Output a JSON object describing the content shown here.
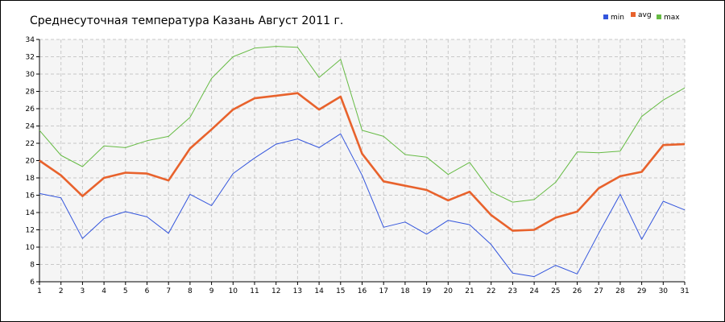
{
  "chart_data": {
    "type": "line",
    "title": "Среднесуточная температура Казань  Август 2011 г.",
    "xlabel": "",
    "ylabel": "",
    "xlim": [
      1,
      31
    ],
    "ylim": [
      6,
      34
    ],
    "grid": true,
    "legend_position": "top-right",
    "categories": [
      "1",
      "2",
      "3",
      "4",
      "5",
      "6",
      "7",
      "8",
      "9",
      "10",
      "11",
      "12",
      "13",
      "14",
      "15",
      "16",
      "17",
      "18",
      "19",
      "20",
      "21",
      "22",
      "23",
      "24",
      "25",
      "26",
      "27",
      "28",
      "29",
      "30",
      "31"
    ],
    "yticks": [
      "6",
      "8",
      "10",
      "12",
      "14",
      "16",
      "18",
      "20",
      "22",
      "24",
      "26",
      "28",
      "30",
      "32",
      "34"
    ],
    "series": [
      {
        "name": "min",
        "color": "#3355dd",
        "values": [
          16.2,
          15.7,
          11.0,
          13.3,
          14.1,
          13.5,
          11.6,
          16.1,
          14.8,
          18.5,
          20.3,
          21.9,
          22.5,
          21.5,
          23.1,
          18.3,
          12.3,
          12.9,
          11.5,
          13.1,
          12.6,
          10.3,
          7.0,
          6.6,
          7.9,
          6.9,
          11.6,
          16.1,
          10.9,
          15.3,
          14.3
        ]
      },
      {
        "name": "avg",
        "color": "#e8622c",
        "values": [
          20.0,
          18.3,
          15.9,
          18.0,
          18.6,
          18.5,
          17.7,
          21.4,
          23.6,
          25.9,
          27.2,
          27.5,
          27.8,
          25.9,
          27.4,
          20.8,
          17.6,
          17.1,
          16.6,
          15.4,
          16.4,
          13.7,
          11.9,
          12.0,
          13.4,
          14.1,
          16.8,
          18.2,
          18.7,
          21.8,
          21.9
        ]
      },
      {
        "name": "max",
        "color": "#66bb44",
        "values": [
          23.5,
          20.6,
          19.3,
          21.7,
          21.5,
          22.3,
          22.8,
          25.0,
          29.5,
          32.0,
          33.0,
          33.2,
          33.1,
          29.6,
          31.7,
          23.5,
          22.8,
          20.7,
          20.4,
          18.4,
          19.8,
          16.4,
          15.2,
          15.5,
          17.5,
          21.0,
          20.9,
          21.1,
          25.1,
          27.0,
          28.4
        ]
      }
    ]
  }
}
